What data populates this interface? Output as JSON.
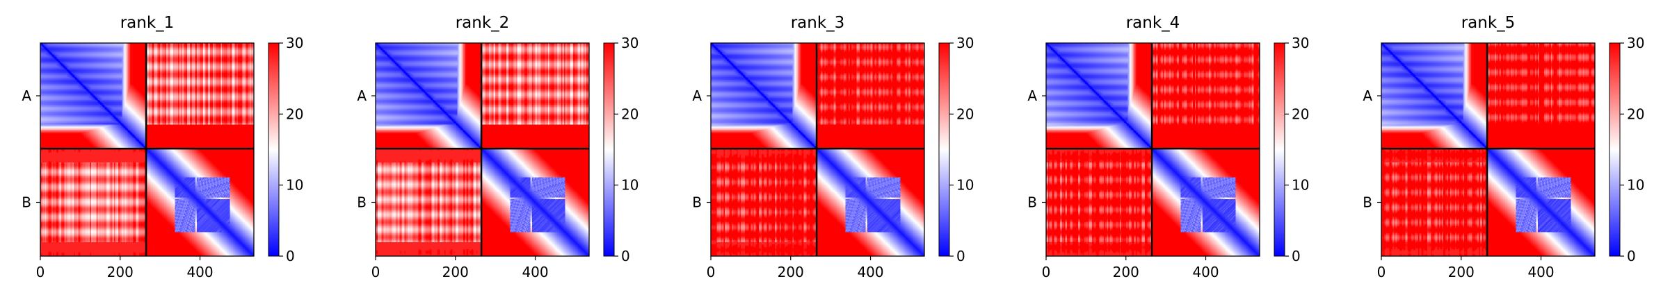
{
  "chart_data": [
    {
      "type": "heatmap",
      "title": "rank_1",
      "chains": [
        "A",
        "B"
      ],
      "chain_boundary": 265,
      "xlim": [
        0,
        535
      ],
      "xticks": [
        0,
        200,
        400
      ],
      "colorbar": {
        "min": 0,
        "max": 30,
        "ticks": [
          0,
          10,
          20,
          30
        ],
        "colors": [
          "#0000ff",
          "#ffffff",
          "#ff0000"
        ]
      },
      "interchain_level": "medium",
      "domain_blocks": [
        [
          337,
          388
        ],
        [
          392,
          475
        ]
      ]
    },
    {
      "type": "heatmap",
      "title": "rank_2",
      "chains": [
        "A",
        "B"
      ],
      "chain_boundary": 265,
      "xlim": [
        0,
        535
      ],
      "xticks": [
        0,
        200,
        400
      ],
      "colorbar": {
        "min": 0,
        "max": 30,
        "ticks": [
          0,
          10,
          20,
          30
        ],
        "colors": [
          "#0000ff",
          "#ffffff",
          "#ff0000"
        ]
      },
      "interchain_level": "medium",
      "domain_blocks": [
        [
          337,
          388
        ],
        [
          392,
          475
        ]
      ]
    },
    {
      "type": "heatmap",
      "title": "rank_3",
      "chains": [
        "A",
        "B"
      ],
      "chain_boundary": 265,
      "xlim": [
        0,
        535
      ],
      "xticks": [
        0,
        200,
        400
      ],
      "colorbar": {
        "min": 0,
        "max": 30,
        "ticks": [
          0,
          10,
          20,
          30
        ],
        "colors": [
          "#0000ff",
          "#ffffff",
          "#ff0000"
        ]
      },
      "interchain_level": "low",
      "domain_blocks": [
        [
          337,
          388
        ],
        [
          392,
          475
        ]
      ]
    },
    {
      "type": "heatmap",
      "title": "rank_4",
      "chains": [
        "A",
        "B"
      ],
      "chain_boundary": 265,
      "xlim": [
        0,
        535
      ],
      "xticks": [
        0,
        200,
        400
      ],
      "colorbar": {
        "min": 0,
        "max": 30,
        "ticks": [
          0,
          10,
          20,
          30
        ],
        "colors": [
          "#0000ff",
          "#ffffff",
          "#ff0000"
        ]
      },
      "interchain_level": "low",
      "domain_blocks": [
        [
          337,
          388
        ],
        [
          392,
          475
        ]
      ]
    },
    {
      "type": "heatmap",
      "title": "rank_5",
      "chains": [
        "A",
        "B"
      ],
      "chain_boundary": 265,
      "xlim": [
        0,
        535
      ],
      "xticks": [
        0,
        200,
        400
      ],
      "colorbar": {
        "min": 0,
        "max": 30,
        "ticks": [
          0,
          10,
          20,
          30
        ],
        "colors": [
          "#0000ff",
          "#ffffff",
          "#ff0000"
        ]
      },
      "interchain_level": "low",
      "domain_blocks": [
        [
          337,
          388
        ],
        [
          392,
          475
        ]
      ]
    }
  ]
}
